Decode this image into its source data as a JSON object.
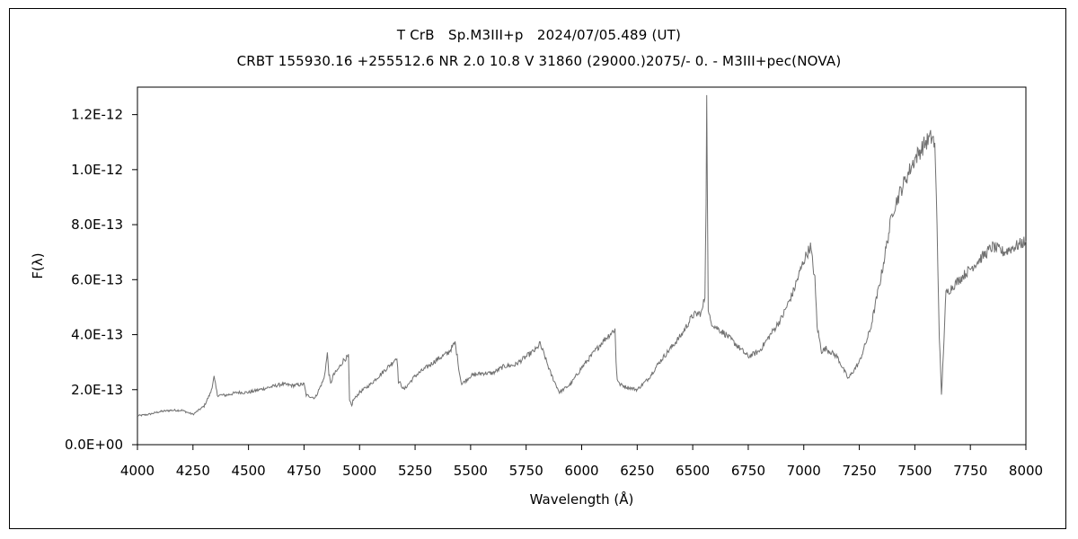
{
  "chart_data": {
    "type": "line",
    "title": "T CrB　Sp.M3III+p　2024/07/05.489 (UT)",
    "subtitle": "CRBT 155930.16 +255512.6 NR 2.0 10.8 V 31860 (29000.)2075/-  0. - M3III+pec(NOVA)",
    "xlabel": "Wavelength (Å)",
    "ylabel": "F(λ)",
    "xlim": [
      4000,
      8000
    ],
    "ylim": [
      0,
      1.3e-12
    ],
    "grid": false,
    "legend": "none",
    "x_ticks": [
      4000,
      4250,
      4500,
      4750,
      5000,
      5250,
      5500,
      5750,
      6000,
      6250,
      6500,
      6750,
      7000,
      7250,
      7500,
      7750,
      8000
    ],
    "x_tick_labels": [
      "4000",
      "4250",
      "4500",
      "4750",
      "5000",
      "5250",
      "5500",
      "5750",
      "6000",
      "6250",
      "6500",
      "6750",
      "7000",
      "7250",
      "7500",
      "7750",
      "8000"
    ],
    "y_ticks": [
      0,
      2e-13,
      4e-13,
      6e-13,
      8e-13,
      1e-12,
      1.2e-12
    ],
    "y_tick_labels": [
      "0.0E+00",
      "2.0E-13",
      "4.0E-13",
      "6.0E-13",
      "8.0E-13",
      "1.0E-12",
      "1.2E-12"
    ],
    "line_color": "#707070",
    "series": [
      {
        "x": [
          4000,
          4050,
          4100,
          4150,
          4200,
          4250,
          4300,
          4330,
          4345,
          4360,
          4400,
          4450,
          4500,
          4550,
          4600,
          4650,
          4700,
          4750,
          4760,
          4800,
          4840,
          4855,
          4862,
          4870,
          4880,
          4900,
          4930,
          4950,
          4955,
          4960,
          4965,
          4970,
          5000,
          5050,
          5100,
          5150,
          5168,
          5175,
          5185,
          5200,
          5250,
          5300,
          5350,
          5400,
          5430,
          5440,
          5450,
          5460,
          5500,
          5550,
          5600,
          5650,
          5700,
          5750,
          5800,
          5810,
          5830,
          5860,
          5900,
          5950,
          6000,
          6050,
          6100,
          6150,
          6155,
          6160,
          6170,
          6200,
          6250,
          6300,
          6350,
          6400,
          6450,
          6500,
          6540,
          6555,
          6560,
          6563,
          6566,
          6570,
          6580,
          6600,
          6650,
          6700,
          6750,
          6800,
          6850,
          6900,
          6950,
          7000,
          7030,
          7050,
          7060,
          7080,
          7100,
          7150,
          7200,
          7250,
          7300,
          7350,
          7400,
          7450,
          7500,
          7550,
          7580,
          7590,
          7600,
          7610,
          7620,
          7640,
          7700,
          7750,
          7800,
          7850,
          7900,
          7950,
          8000
        ],
        "y": [
          1.05e-13,
          1.1e-13,
          1.2e-13,
          1.25e-13,
          1.25e-13,
          1.1e-13,
          1.4e-13,
          1.9e-13,
          2.45e-13,
          1.8e-13,
          1.8e-13,
          1.9e-13,
          1.9e-13,
          2e-13,
          2.1e-13,
          2.2e-13,
          2.15e-13,
          2.2e-13,
          1.8e-13,
          1.7e-13,
          2.4e-13,
          3.3e-13,
          2.6e-13,
          2.2e-13,
          2.5e-13,
          2.7e-13,
          3.1e-13,
          3.2e-13,
          1.6e-13,
          1.5e-13,
          1.4e-13,
          1.6e-13,
          1.9e-13,
          2.2e-13,
          2.6e-13,
          3e-13,
          3.2e-13,
          2.3e-13,
          2.2e-13,
          2e-13,
          2.5e-13,
          2.8e-13,
          3.1e-13,
          3.35e-13,
          3.7e-13,
          3.2e-13,
          2.6e-13,
          2.2e-13,
          2.5e-13,
          2.6e-13,
          2.6e-13,
          2.85e-13,
          2.9e-13,
          3.2e-13,
          3.5e-13,
          3.7e-13,
          3.3e-13,
          2.6e-13,
          1.9e-13,
          2.2e-13,
          2.8e-13,
          3.3e-13,
          3.8e-13,
          4.2e-13,
          3e-13,
          2.4e-13,
          2.2e-13,
          2.1e-13,
          2e-13,
          2.4e-13,
          3e-13,
          3.5e-13,
          4e-13,
          4.7e-13,
          4.8e-13,
          5.4e-13,
          9e-13,
          1.25e-12,
          9.5e-13,
          4.8e-13,
          4.5e-13,
          4.3e-13,
          4e-13,
          3.6e-13,
          3.2e-13,
          3.4e-13,
          4e-13,
          4.6e-13,
          5.5e-13,
          6.7e-13,
          7.2e-13,
          6e-13,
          4.3e-13,
          3.4e-13,
          3.5e-13,
          3.2e-13,
          2.4e-13,
          3e-13,
          4.2e-13,
          6.2e-13,
          8.5e-13,
          9.5e-13,
          1.04e-12,
          1.1e-12,
          1.12e-12,
          1.08e-12,
          8e-13,
          4e-13,
          1.8e-13,
          5.5e-13,
          6e-13,
          6.4e-13,
          6.8e-13,
          7.2e-13,
          7e-13,
          7.2e-13,
          7.4e-13
        ]
      }
    ]
  }
}
